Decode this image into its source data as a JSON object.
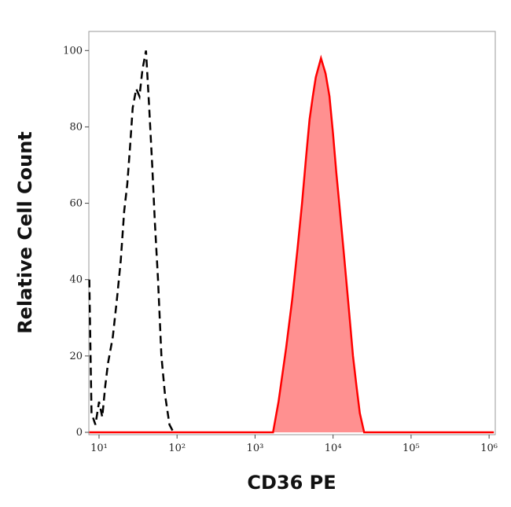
{
  "chart_data": {
    "type": "histogram-line",
    "x_label": "CD36 PE",
    "y_label": "Relative Cell Count",
    "xscale": "log",
    "xlim": [
      7.4,
      1200000
    ],
    "ylim": [
      0,
      105
    ],
    "xticks": [
      {
        "value": 10,
        "label": "10¹"
      },
      {
        "value": 100,
        "label": "10²"
      },
      {
        "value": 1000,
        "label": "10³"
      },
      {
        "value": 10000,
        "label": "10⁴"
      },
      {
        "value": 100000,
        "label": "10⁵"
      },
      {
        "value": 1000000,
        "label": "10⁶"
      }
    ],
    "yticks": [
      0,
      20,
      40,
      60,
      80,
      100
    ],
    "series": [
      {
        "color": "#000000",
        "style": "dashed",
        "fill": false,
        "x": [
          7.5,
          8,
          9,
          10,
          11,
          12,
          13,
          15,
          17,
          19,
          21,
          23,
          25,
          27,
          30,
          33,
          36,
          40,
          44,
          48,
          52,
          57,
          63,
          70,
          80,
          90
        ],
        "values": [
          40,
          5,
          2,
          8,
          4,
          12,
          18,
          25,
          35,
          45,
          58,
          65,
          75,
          85,
          90,
          88,
          95,
          100,
          85,
          70,
          55,
          40,
          20,
          10,
          2,
          0
        ]
      },
      {
        "color": "#ff0000",
        "style": "solid",
        "fill": true,
        "fill_color": "#ff9090",
        "x": [
          7.5,
          1700,
          2000,
          2500,
          3000,
          3500,
          4000,
          4500,
          5000,
          5500,
          6000,
          7000,
          8000,
          9000,
          10000,
          11000,
          12000,
          14000,
          16000,
          18000,
          20000,
          22000,
          25000,
          1150000
        ],
        "values": [
          0,
          0,
          8,
          22,
          35,
          48,
          60,
          72,
          82,
          88,
          93,
          98,
          94,
          88,
          78,
          68,
          60,
          45,
          32,
          20,
          12,
          5,
          0,
          0
        ]
      }
    ]
  }
}
